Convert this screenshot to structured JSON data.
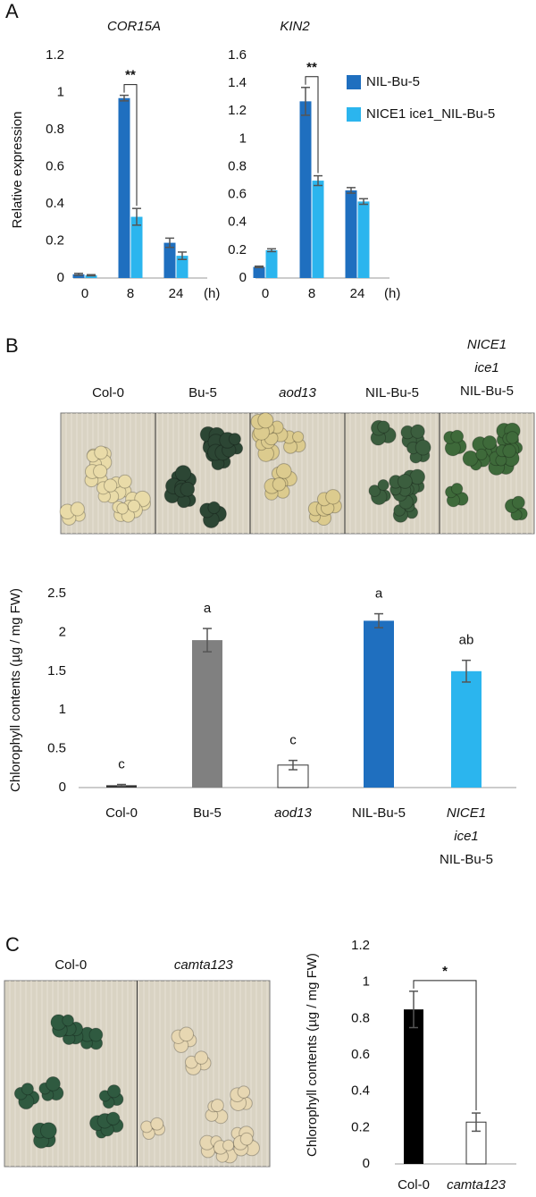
{
  "panels": [
    "A",
    "B",
    "C"
  ],
  "photos": [
    {
      "labels": [
        "Col-0",
        "Bu-5",
        "aod13",
        "NIL-Bu-5",
        "NICE1 ice1 NIL-Bu-5"
      ]
    },
    {
      "labels": [
        "Col-0",
        "camta123"
      ]
    }
  ],
  "chart_data": [
    {
      "type": "bar",
      "title": "COR15A",
      "y_label": "Relative expression",
      "x_unit": "(h)",
      "categories": [
        "0",
        "8",
        "24"
      ],
      "significance": "**",
      "series": [
        {
          "color": "#1f6fbf",
          "values": [
            0.02,
            0.97,
            0.19
          ],
          "errors": [
            0.005,
            0.015,
            0.025
          ]
        },
        {
          "color": "#2bb5ee",
          "values": [
            0.015,
            0.33,
            0.12
          ],
          "errors": [
            0.003,
            0.045,
            0.02
          ]
        }
      ],
      "ylim": [
        0,
        1.2
      ],
      "yticks": [
        0,
        0.2,
        0.4,
        0.6,
        0.8,
        1,
        1.2
      ]
    },
    {
      "type": "bar",
      "title": "KIN2",
      "x_unit": "(h)",
      "categories": [
        "0",
        "8",
        "24"
      ],
      "significance": "**",
      "series": [
        {
          "name": "NIL-Bu-5",
          "color": "#1f6fbf",
          "values": [
            0.08,
            1.27,
            0.63
          ],
          "errors": [
            0.005,
            0.1,
            0.02
          ]
        },
        {
          "name": "NICE1 ice1_NIL-Bu-5",
          "color": "#2bb5ee",
          "values": [
            0.2,
            0.7,
            0.55
          ],
          "errors": [
            0.01,
            0.035,
            0.02
          ]
        }
      ],
      "ylim": [
        0,
        1.6
      ],
      "yticks": [
        0,
        0.2,
        0.4,
        0.6,
        0.8,
        1,
        1.2,
        1.4,
        1.6
      ]
    },
    {
      "type": "bar",
      "y_label": "Chlorophyll contents (µg / mg FW)",
      "categories": [
        "Col-0",
        "Bu-5",
        "aod13",
        "NIL-Bu-5",
        "NICE1 ice1 NIL-Bu-5"
      ],
      "values": [
        0.03,
        1.9,
        0.29,
        2.15,
        1.5
      ],
      "errors": [
        0.01,
        0.15,
        0.06,
        0.09,
        0.14
      ],
      "colors": [
        "#333333",
        "#808080",
        "#ffffff",
        "#1f6fbf",
        "#2bb5ee"
      ],
      "letters": [
        "c",
        "a",
        "c",
        "a",
        "ab"
      ],
      "ylim": [
        0,
        2.5
      ],
      "yticks": [
        0,
        0.5,
        1,
        1.5,
        2,
        2.5
      ]
    },
    {
      "type": "bar",
      "y_label": "Chlorophyll contents (µg / mg FW)",
      "categories": [
        "Col-0",
        "camta123"
      ],
      "significance": "*",
      "values": [
        0.85,
        0.23
      ],
      "errors": [
        0.1,
        0.05
      ],
      "colors": [
        "#000000",
        "#ffffff"
      ],
      "ylim": [
        0,
        1.2
      ],
      "yticks": [
        0,
        0.2,
        0.4,
        0.6,
        0.8,
        1,
        1.2
      ]
    }
  ]
}
